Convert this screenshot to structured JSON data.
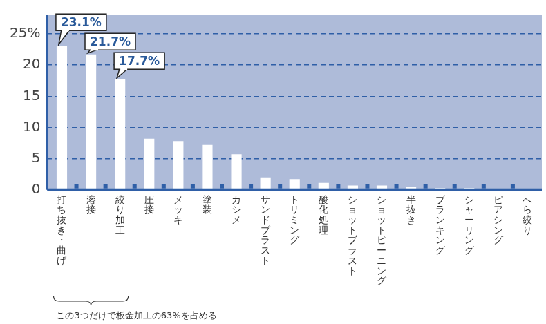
{
  "chart_data": {
    "type": "bar",
    "categories": [
      "打ち抜き・曲げ",
      "溶接",
      "絞り加工",
      "圧接",
      "メッキ",
      "塗装",
      "カシメ",
      "サンドブラスト",
      "トリミング",
      "酸化処理",
      "ショットブラスト",
      "ショットピーニング",
      "半抜き",
      "ブランキング",
      "シャーリング",
      "ピアシング",
      "へら絞り"
    ],
    "values": [
      23.1,
      21.7,
      17.7,
      8.2,
      7.8,
      7.2,
      5.7,
      2.0,
      1.7,
      1.1,
      0.7,
      0.7,
      0.4,
      0.3,
      0.3,
      0.2,
      0.2
    ],
    "value_labels": [
      "23.1%",
      "21.7%",
      "17.7%",
      null,
      null,
      null,
      null,
      null,
      null,
      null,
      null,
      null,
      null,
      null,
      null,
      null,
      null
    ],
    "data_labels": true,
    "color": "#ffffff",
    "ylim": [
      0,
      28
    ],
    "yticks": [
      0,
      5,
      10,
      15,
      20,
      {
        "value": 25,
        "label": "25%"
      }
    ],
    "grid": true,
    "annotation": "この3つだけで板金加工の63%を占める"
  }
}
